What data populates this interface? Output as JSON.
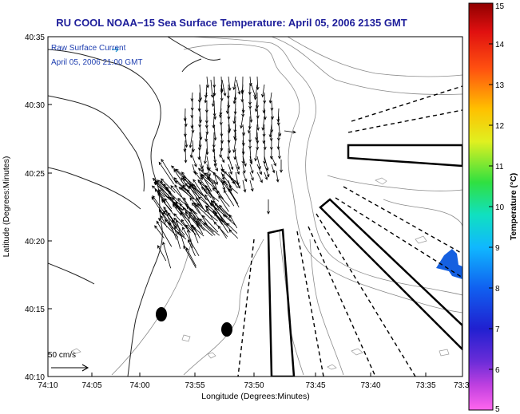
{
  "title": "RU COOL  NOAA−15  Sea Surface Temperature:  April 05, 2006 2135 GMT",
  "legend": {
    "line1": "Raw Surface Current",
    "line2": "April 05, 2006 21:00 GMT",
    "color": "#1f3fb0"
  },
  "axes": {
    "xlabel": "Longitude (Degrees:Minutes)",
    "ylabel": "Latitude (Degrees:Minutes)",
    "xticks": [
      "74:10",
      "74:05",
      "74:00",
      "73:55",
      "73:50",
      "73:45",
      "73:40",
      "73:35",
      "73:3"
    ],
    "yticks": [
      "40:35",
      "40:30",
      "40:25",
      "40:20",
      "40:15",
      "40:10"
    ]
  },
  "scale_label": "50 cm/s",
  "colorbar": {
    "label": "Temperature (°C)",
    "min": 5,
    "max": 15,
    "ticks": [
      "15",
      "14",
      "13",
      "12",
      "11",
      "10",
      "9",
      "8",
      "7",
      "6",
      "5"
    ]
  },
  "sst_patch_color": "#1560e0"
}
